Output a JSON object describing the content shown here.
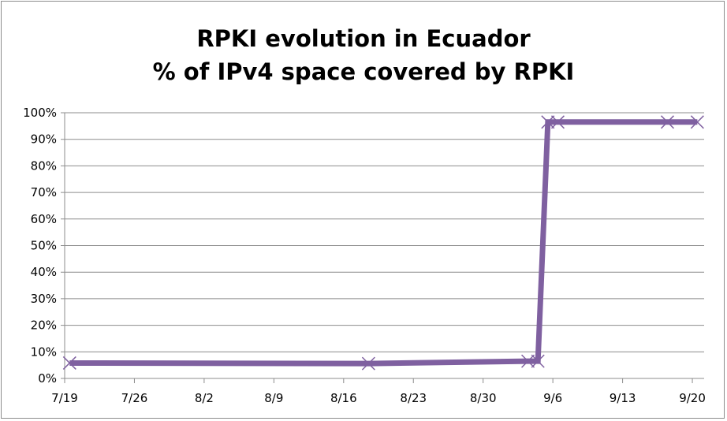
{
  "chart_data": {
    "type": "line",
    "title": [
      "RPKI evolution in Ecuador",
      "% of IPv4 space covered by RPKI"
    ],
    "xlabel": "",
    "ylabel": "",
    "x_ticks": [
      "7/19",
      "7/26",
      "8/2",
      "8/9",
      "8/16",
      "8/23",
      "8/30",
      "9/6",
      "9/13",
      "9/20"
    ],
    "y_ticks": [
      "0%",
      "10%",
      "20%",
      "30%",
      "40%",
      "50%",
      "60%",
      "70%",
      "80%",
      "90%",
      "100%"
    ],
    "ylim": [
      0,
      100
    ],
    "xlim": [
      "7/19",
      "9/21"
    ],
    "grid": "horizontal",
    "legend": "none",
    "marker": "x",
    "series": [
      {
        "color": "#7f60a0",
        "x": [
          "7/19",
          "8/18",
          "9/3",
          "9/4",
          "9/5",
          "9/6",
          "9/17",
          "9/20"
        ],
        "values": [
          5.8,
          5.6,
          6.5,
          6.5,
          96.5,
          96.5,
          96.5,
          96.5
        ]
      }
    ]
  }
}
